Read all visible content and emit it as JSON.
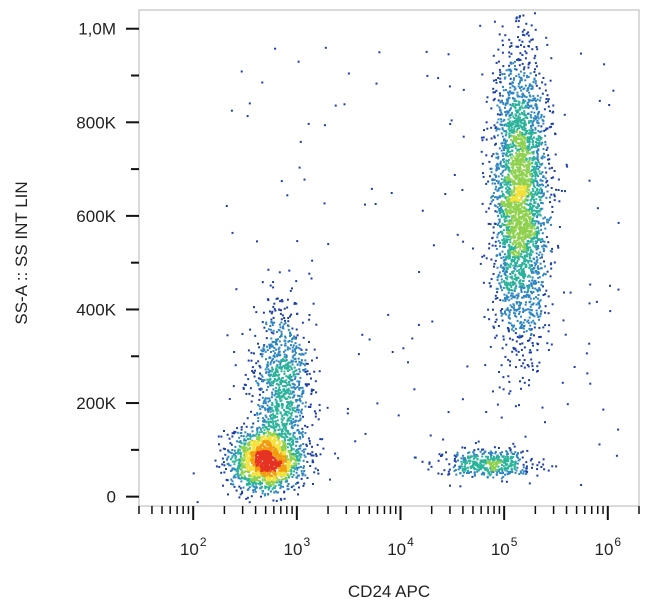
{
  "chart_data": {
    "type": "scatter",
    "subtype": "flow-cytometry-density-dot-plot",
    "xlabel": "CD24 APC",
    "ylabel": "SS-A :: SS INT LIN",
    "x_scale": "log",
    "y_scale": "linear",
    "xlim": [
      30,
      2000000
    ],
    "ylim": [
      -20000,
      1040000
    ],
    "x_ticks": [
      {
        "base": "10",
        "exp": "2",
        "value": 100
      },
      {
        "base": "10",
        "exp": "3",
        "value": 1000
      },
      {
        "base": "10",
        "exp": "4",
        "value": 10000
      },
      {
        "base": "10",
        "exp": "5",
        "value": 100000
      },
      {
        "base": "10",
        "exp": "6",
        "value": 1000000
      }
    ],
    "y_ticks": [
      {
        "label": "0",
        "value": 0
      },
      {
        "label": "200K",
        "value": 200000
      },
      {
        "label": "400K",
        "value": 400000
      },
      {
        "label": "600K",
        "value": 600000
      },
      {
        "label": "800K",
        "value": 800000
      },
      {
        "label": "1,0M",
        "value": 1000000
      }
    ],
    "populations": [
      {
        "name": "CD24-negative low-SS core",
        "x_center": 500,
        "y_center": 80000,
        "x_spread_decades": 0.17,
        "y_spread": 32000,
        "count": 1700
      },
      {
        "name": "CD24-negative upper tail",
        "x_center": 700,
        "y_center": 230000,
        "x_spread_decades": 0.14,
        "y_spread": 90000,
        "count": 1000
      },
      {
        "name": "CD24-positive high-SS",
        "x_center": 140000,
        "y_center": 640000,
        "x_spread_decades": 0.13,
        "y_spread": 150000,
        "count": 3000
      },
      {
        "name": "CD24-positive low-SS band",
        "x_center": 70000,
        "y_center": 72000,
        "x_spread_decades": 0.22,
        "y_spread": 15000,
        "count": 450
      }
    ],
    "density_colors": [
      "#1c3fa6",
      "#2e86c1",
      "#2ab29a",
      "#8fd14f",
      "#f4e13a",
      "#f39c12",
      "#e53222"
    ],
    "grid": false,
    "legend": "none"
  }
}
